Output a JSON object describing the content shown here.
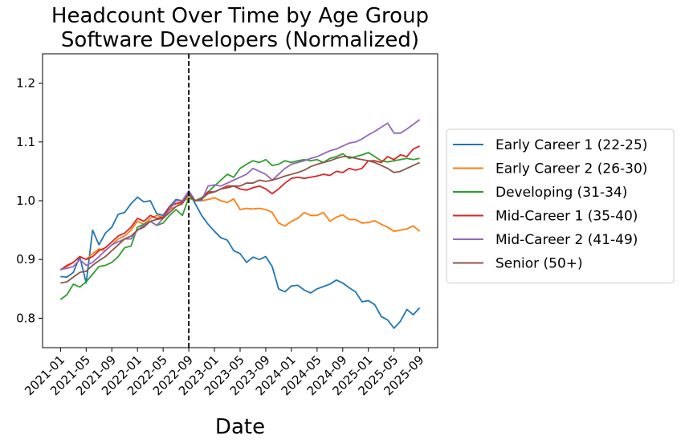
{
  "chart_data": {
    "type": "line",
    "title": [
      "Headcount Over Time by Age Group",
      "Software Developers (Normalized)"
    ],
    "xlabel": "Date",
    "x": [
      "2021-01",
      "2021-02",
      "2021-03",
      "2021-04",
      "2021-05",
      "2021-06",
      "2021-07",
      "2021-08",
      "2021-09",
      "2021-10",
      "2021-11",
      "2021-12",
      "2022-01",
      "2022-02",
      "2022-03",
      "2022-04",
      "2022-05",
      "2022-06",
      "2022-07",
      "2022-08",
      "2022-09",
      "2022-10",
      "2022-11",
      "2022-12",
      "2023-01",
      "2023-02",
      "2023-03",
      "2023-04",
      "2023-05",
      "2023-06",
      "2023-07",
      "2023-08",
      "2023-09",
      "2023-10",
      "2023-11",
      "2023-12",
      "2024-01",
      "2024-02",
      "2024-03",
      "2024-04",
      "2024-05",
      "2024-06",
      "2024-07",
      "2024-08",
      "2024-09",
      "2024-10",
      "2024-11",
      "2024-12",
      "2025-01",
      "2025-02",
      "2025-03",
      "2025-04",
      "2025-05",
      "2025-06",
      "2025-07",
      "2025-08",
      "2025-09"
    ],
    "xticks": [
      "2021-01",
      "2021-05",
      "2021-09",
      "2022-01",
      "2022-05",
      "2022-09",
      "2023-01",
      "2023-05",
      "2023-09",
      "2024-01",
      "2024-05",
      "2024-09",
      "2025-01",
      "2025-05",
      "2025-09"
    ],
    "vline": "2022-09",
    "ylim": [
      0.75,
      1.25
    ],
    "yticks": [
      0.8,
      0.9,
      {
        "value": 1,
        "label": "1.0"
      },
      1.1,
      1.2
    ],
    "legend": "right",
    "series": [
      {
        "name": "Early Career 1 (22-25)",
        "color": "#1f77b4",
        "values": [
          0.871,
          0.87,
          0.878,
          0.905,
          0.86,
          0.95,
          0.925,
          0.945,
          0.955,
          0.977,
          0.98,
          0.995,
          1.006,
          0.998,
          1.0,
          0.978,
          0.975,
          0.99,
          1.002,
          1.0,
          1.015,
          0.995,
          0.975,
          0.96,
          0.948,
          0.937,
          0.933,
          0.915,
          0.91,
          0.895,
          0.904,
          0.9,
          0.905,
          0.888,
          0.85,
          0.845,
          0.855,
          0.856,
          0.848,
          0.843,
          0.85,
          0.854,
          0.858,
          0.865,
          0.86,
          0.852,
          0.845,
          0.828,
          0.83,
          0.823,
          0.803,
          0.797,
          0.783,
          0.795,
          0.815,
          0.806,
          0.818
        ]
      },
      {
        "name": "Early Career 2 (26-30)",
        "color": "#ff7f0e",
        "values": [
          0.883,
          0.888,
          0.895,
          0.905,
          0.9,
          0.91,
          0.918,
          0.915,
          0.925,
          0.935,
          0.94,
          0.95,
          0.965,
          0.96,
          0.97,
          0.975,
          0.972,
          0.985,
          0.99,
          0.998,
          1.005,
          1.0,
          1.0,
          1.002,
          1.005,
          1.0,
          0.997,
          1.003,
          0.985,
          0.987,
          0.986,
          0.987,
          0.985,
          0.98,
          0.962,
          0.957,
          0.965,
          0.97,
          0.98,
          0.975,
          0.975,
          0.98,
          0.965,
          0.972,
          0.976,
          0.968,
          0.968,
          0.962,
          0.963,
          0.966,
          0.96,
          0.955,
          0.948,
          0.95,
          0.952,
          0.957,
          0.948
        ]
      },
      {
        "name": "Developing (31-34)",
        "color": "#2ca02c",
        "values": [
          0.832,
          0.84,
          0.858,
          0.853,
          0.862,
          0.875,
          0.888,
          0.89,
          0.895,
          0.905,
          0.92,
          0.923,
          0.955,
          0.96,
          0.965,
          0.958,
          0.962,
          0.975,
          0.985,
          0.975,
          1.005,
          1.0,
          1.005,
          1.015,
          1.025,
          1.035,
          1.045,
          1.04,
          1.055,
          1.062,
          1.068,
          1.065,
          1.07,
          1.06,
          1.062,
          1.068,
          1.065,
          1.068,
          1.07,
          1.068,
          1.07,
          1.065,
          1.072,
          1.075,
          1.08,
          1.072,
          1.075,
          1.078,
          1.082,
          1.075,
          1.068,
          1.066,
          1.068,
          1.07,
          1.072,
          1.07,
          1.072
        ]
      },
      {
        "name": "Mid-Career 1 (35-40)",
        "color": "#d62728",
        "values": [
          0.882,
          0.89,
          0.895,
          0.905,
          0.9,
          0.905,
          0.915,
          0.92,
          0.93,
          0.94,
          0.945,
          0.955,
          0.97,
          0.965,
          0.975,
          0.97,
          0.972,
          0.99,
          0.995,
          0.998,
          1.01,
          1.0,
          1.003,
          1.015,
          1.015,
          1.02,
          1.025,
          1.025,
          1.02,
          1.018,
          1.022,
          1.025,
          1.02,
          1.012,
          1.02,
          1.03,
          1.038,
          1.04,
          1.038,
          1.04,
          1.042,
          1.045,
          1.043,
          1.05,
          1.048,
          1.055,
          1.052,
          1.055,
          1.068,
          1.068,
          1.065,
          1.075,
          1.07,
          1.078,
          1.075,
          1.088,
          1.093
        ]
      },
      {
        "name": "Mid-Career 2 (41-49)",
        "color": "#9467bd",
        "values": [
          0.883,
          0.885,
          0.888,
          0.9,
          0.89,
          0.895,
          0.905,
          0.915,
          0.925,
          0.93,
          0.935,
          0.935,
          0.95,
          0.958,
          0.965,
          0.958,
          0.97,
          0.985,
          1.0,
          1.0,
          1.017,
          1.0,
          1.0,
          1.025,
          1.027,
          1.025,
          1.03,
          1.035,
          1.04,
          1.045,
          1.055,
          1.05,
          1.045,
          1.035,
          1.045,
          1.055,
          1.062,
          1.065,
          1.068,
          1.072,
          1.075,
          1.08,
          1.085,
          1.088,
          1.093,
          1.098,
          1.1,
          1.105,
          1.112,
          1.118,
          1.125,
          1.132,
          1.115,
          1.115,
          1.122,
          1.13,
          1.138
        ]
      },
      {
        "name": "Senior (50+)",
        "color": "#8c564b",
        "values": [
          0.86,
          0.862,
          0.87,
          0.878,
          0.88,
          0.89,
          0.898,
          0.905,
          0.915,
          0.925,
          0.935,
          0.94,
          0.95,
          0.955,
          0.965,
          0.968,
          0.97,
          0.98,
          0.99,
          0.995,
          1.012,
          1.0,
          1.003,
          1.012,
          1.015,
          1.02,
          1.022,
          1.025,
          1.025,
          1.03,
          1.03,
          1.035,
          1.033,
          1.035,
          1.038,
          1.042,
          1.045,
          1.048,
          1.052,
          1.058,
          1.062,
          1.065,
          1.068,
          1.072,
          1.075,
          1.075,
          1.072,
          1.07,
          1.068,
          1.065,
          1.06,
          1.055,
          1.048,
          1.05,
          1.055,
          1.06,
          1.065
        ]
      }
    ]
  }
}
